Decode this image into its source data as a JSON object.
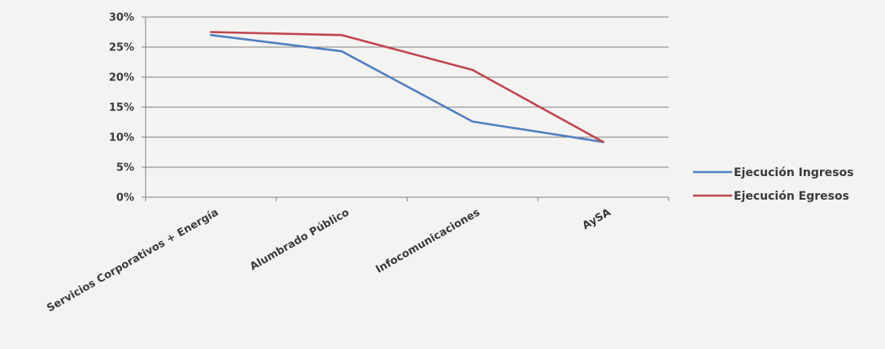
{
  "chart_data": {
    "type": "line",
    "categories": [
      "Servicios Corporativos + Energía",
      "Alumbrado Público",
      "Infocomunicaciones",
      "AySA"
    ],
    "series": [
      {
        "name": "Ejecución Ingresos",
        "color": "#4f7fc0",
        "values": [
          27.0,
          24.3,
          12.6,
          9.2
        ]
      },
      {
        "name": "Ejecución Egresos",
        "color": "#c0444f",
        "values": [
          27.5,
          27.0,
          21.2,
          9.2
        ]
      }
    ],
    "yticks": [
      "0%",
      "5%",
      "10%",
      "15%",
      "20%",
      "25%",
      "30%"
    ],
    "ylim": [
      0,
      30
    ],
    "grid": true,
    "legend": "right"
  }
}
